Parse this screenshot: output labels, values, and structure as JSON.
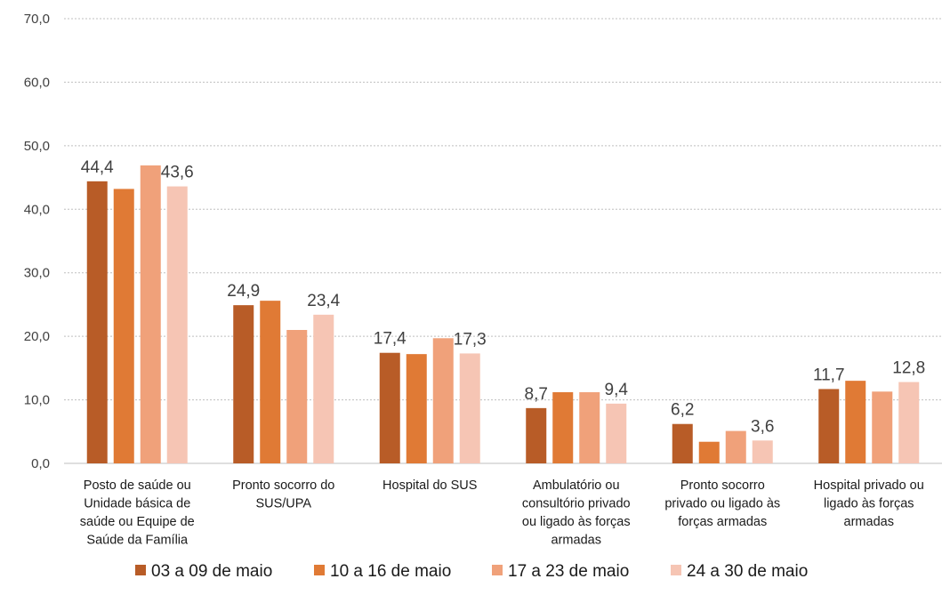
{
  "chart_data": {
    "type": "bar",
    "title": "",
    "xlabel": "",
    "ylabel": "",
    "ylim": [
      0,
      70
    ],
    "yticks": [
      "0,0",
      "10,0",
      "20,0",
      "30,0",
      "40,0",
      "50,0",
      "60,0",
      "70,0"
    ],
    "grid": true,
    "legend_position": "bottom",
    "categories": [
      [
        "Posto de saúde ou",
        "Unidade básica de",
        "saúde ou Equipe de",
        "Saúde da Família"
      ],
      [
        "Pronto socorro do",
        "SUS/UPA"
      ],
      [
        "Hospital do SUS"
      ],
      [
        "Ambulatório ou",
        "consultório privado",
        "ou ligado às forças",
        "armadas"
      ],
      [
        "Pronto socorro",
        "privado ou ligado às",
        "forças armadas"
      ],
      [
        "Hospital privado ou",
        "ligado às forças",
        "armadas"
      ]
    ],
    "series": [
      {
        "name": "03 a 09 de maio",
        "color": "#b85c27",
        "values": [
          44.4,
          24.9,
          17.4,
          8.7,
          6.2,
          11.7
        ],
        "labels": [
          "44,4",
          "24,9",
          "17,4",
          "8,7",
          "6,2",
          "11,7"
        ]
      },
      {
        "name": "10 a 16 de maio",
        "color": "#e07a35",
        "values": [
          43.2,
          25.6,
          17.2,
          11.2,
          3.4,
          13.0
        ],
        "labels": [
          "",
          "",
          "",
          "",
          "",
          ""
        ]
      },
      {
        "name": "17 a 23 de maio",
        "color": "#f0a17a",
        "values": [
          46.9,
          21.0,
          19.7,
          11.2,
          5.1,
          11.3
        ],
        "labels": [
          "",
          "",
          "",
          "",
          "",
          ""
        ]
      },
      {
        "name": "24 a 30 de maio",
        "color": "#f6c5b4",
        "values": [
          43.6,
          23.4,
          17.3,
          9.4,
          3.6,
          12.8
        ],
        "labels": [
          "43,6",
          "23,4",
          "17,3",
          "9,4",
          "3,6",
          "12,8"
        ]
      }
    ]
  }
}
